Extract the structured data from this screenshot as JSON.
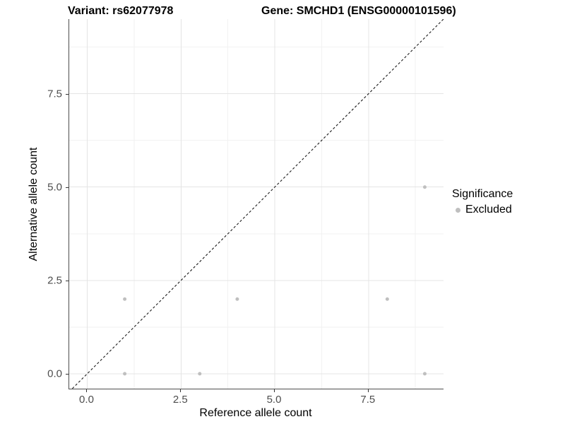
{
  "header": {
    "variant_title": "Variant: rs62077978",
    "gene_title": "Gene: SMCHD1 (ENSG00000101596)"
  },
  "chart_data": {
    "type": "scatter",
    "title": "Variant: rs62077978   Gene: SMCHD1 (ENSG00000101596)",
    "xlabel": "Reference allele count",
    "ylabel": "Alternative allele count",
    "xlim": [
      -0.48,
      9.5
    ],
    "ylim": [
      -0.4,
      9.5
    ],
    "x_major_ticks": {
      "values": [
        0,
        2.5,
        5,
        7.5
      ],
      "labels": [
        "0.0",
        "2.5",
        "5.0",
        "7.5"
      ]
    },
    "y_major_ticks": {
      "values": [
        0,
        2.5,
        5,
        7.5
      ],
      "labels": [
        "0.0",
        "2.5",
        "5.0",
        "7.5"
      ]
    },
    "x_minor_gridlines": [
      1.25,
      3.75,
      6.25,
      8.75
    ],
    "y_minor_gridlines": [
      1.25,
      3.75,
      6.25,
      8.75
    ],
    "grid": true,
    "identity_line": {
      "slope": 1,
      "intercept": 0,
      "style": "dashed",
      "color": "#1a1a1a"
    },
    "series": [
      {
        "name": "Excluded",
        "color": "#bfbfbf",
        "point_radius": 2.5,
        "points": [
          {
            "x": 1,
            "y": 0
          },
          {
            "x": 1,
            "y": 2
          },
          {
            "x": 3,
            "y": 0
          },
          {
            "x": 4,
            "y": 2
          },
          {
            "x": 8,
            "y": 2
          },
          {
            "x": 9,
            "y": 0
          },
          {
            "x": 9,
            "y": 5
          }
        ]
      }
    ],
    "legend": {
      "title": "Significance",
      "position": "right",
      "entries": [
        {
          "label": "Excluded",
          "color": "#bfbfbf"
        }
      ]
    },
    "colors": {
      "background": "#ffffff",
      "grid_major": "#e4e4e4",
      "grid_minor": "#f2f2f2",
      "axis_line": "#4d4d4d",
      "tick_mark": "#333333",
      "tick_label": "#4d4d4d",
      "point": "#bfbfbf"
    }
  }
}
